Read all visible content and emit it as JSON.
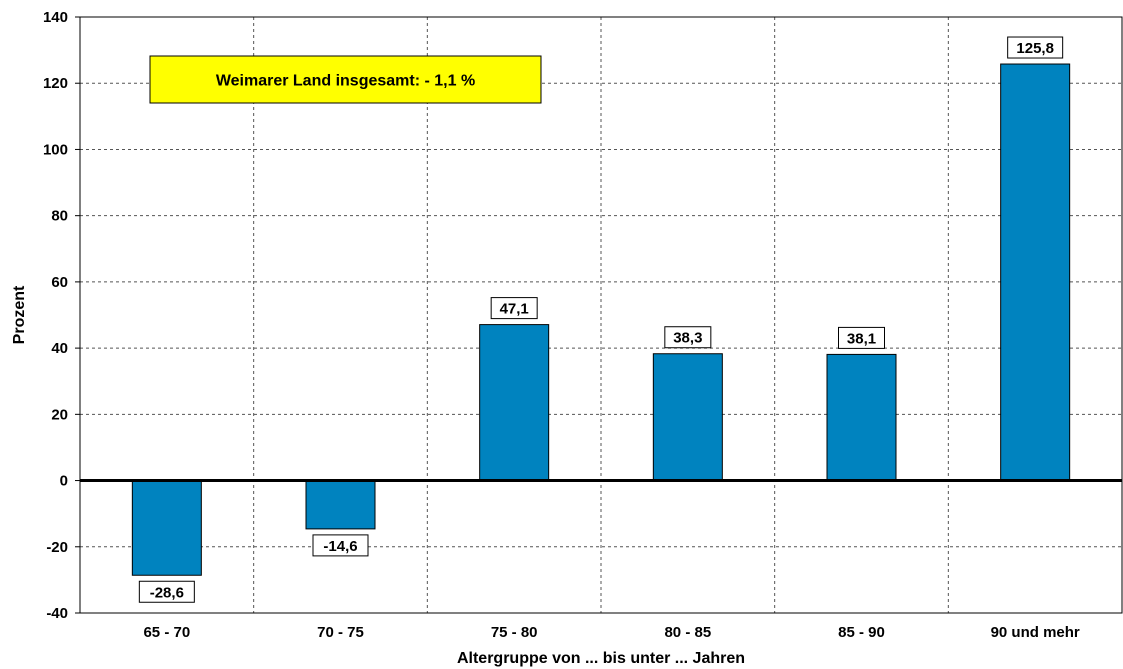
{
  "chart_data": {
    "type": "bar",
    "title": "",
    "xlabel": "Altergruppe von ... bis unter ... Jahren",
    "ylabel": "Prozent",
    "categories": [
      "65 - 70",
      "70 - 75",
      "75 - 80",
      "80 - 85",
      "85 - 90",
      "90 und mehr"
    ],
    "values": [
      -28.6,
      -14.6,
      47.1,
      38.3,
      38.1,
      125.8
    ],
    "value_labels": [
      "-28,6",
      "-14,6",
      "47,1",
      "38,3",
      "38,1",
      "125,8"
    ],
    "ylim": [
      -40,
      140
    ],
    "yticks": [
      -40,
      -20,
      0,
      20,
      40,
      60,
      80,
      100,
      120,
      140
    ],
    "grid": true,
    "bar_color": "#0083BF",
    "annotation": {
      "text": "Weimarer Land insgesamt: - 1,1 %",
      "background": "#FFFF00"
    }
  }
}
